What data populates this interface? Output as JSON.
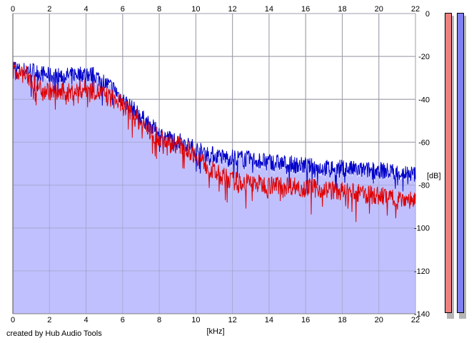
{
  "chart_data": {
    "type": "line",
    "title": "",
    "xlabel": "[kHz]",
    "ylabel": "[dB]",
    "xlim": [
      0,
      22
    ],
    "ylim": [
      -140,
      0
    ],
    "x_ticks": [
      0,
      2,
      4,
      6,
      8,
      10,
      12,
      14,
      16,
      18,
      20,
      22
    ],
    "y_ticks": [
      0,
      -20,
      -40,
      -60,
      -80,
      -100,
      -120,
      -140
    ],
    "grid": true,
    "series": [
      {
        "color": "#0000c8",
        "x": [
          0,
          0.4,
          0.8,
          1.2,
          1.6,
          2.0,
          2.5,
          3.0,
          3.5,
          4.0,
          4.5,
          5.0,
          5.5,
          6.0,
          6.5,
          7.0,
          7.5,
          8.0,
          8.5,
          9.0,
          9.5,
          10.0,
          10.5,
          11.0,
          11.5,
          12.0,
          13.0,
          14.0,
          15.0,
          16.0,
          17.0,
          18.0,
          19.0,
          20.0,
          21.0,
          22.0
        ],
        "y": [
          -24,
          -27,
          -26,
          -27,
          -28,
          -29,
          -29,
          -29,
          -28,
          -28,
          -29,
          -32,
          -35,
          -40,
          -44,
          -48,
          -52,
          -56,
          -58,
          -59,
          -61,
          -63,
          -65,
          -66,
          -67,
          -67,
          -68,
          -69,
          -70,
          -71,
          -72,
          -72,
          -73,
          -73,
          -74,
          -75
        ]
      },
      {
        "color": "#e00000",
        "x": [
          0,
          0.4,
          0.8,
          1.2,
          1.6,
          2.0,
          2.5,
          3.0,
          3.5,
          4.0,
          4.5,
          5.0,
          5.5,
          6.0,
          6.5,
          7.0,
          7.5,
          8.0,
          8.5,
          9.0,
          9.5,
          10.0,
          10.5,
          11.0,
          11.5,
          12.0,
          13.0,
          14.0,
          15.0,
          16.0,
          17.0,
          18.0,
          19.0,
          20.0,
          21.0,
          22.0
        ],
        "y": [
          -26,
          -28,
          -29,
          -33,
          -35,
          -36,
          -37,
          -37,
          -36,
          -35,
          -36,
          -38,
          -40,
          -43,
          -47,
          -51,
          -55,
          -58,
          -60,
          -61,
          -63,
          -66,
          -70,
          -74,
          -76,
          -78,
          -79,
          -80,
          -80,
          -81,
          -82,
          -83,
          -84,
          -85,
          -86,
          -87
        ]
      }
    ],
    "fill_color": "#c0c0ff",
    "meters": [
      {
        "color": "#f08080",
        "level": 1.0
      },
      {
        "color": "#8080f0",
        "level": 1.0
      }
    ]
  },
  "footer": "created by Hub Audio Tools"
}
